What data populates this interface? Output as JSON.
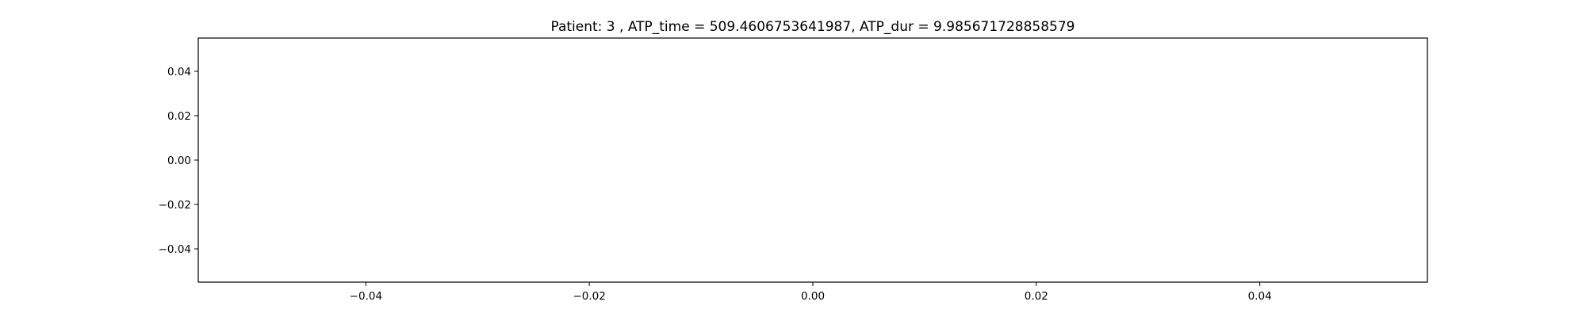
{
  "chart_data": {
    "type": "line",
    "title": "Patient: 3 , ATP_time = 509.4606753641987, ATP_dur = 9.985671728858579",
    "xlabel": "",
    "ylabel": "",
    "series": [],
    "xlim": [
      -0.055,
      0.055
    ],
    "ylim": [
      -0.055,
      0.055
    ],
    "x_ticks": [
      -0.04,
      -0.02,
      0.0,
      0.02,
      0.04
    ],
    "x_tick_labels": [
      "−0.04",
      "−0.02",
      "0.00",
      "0.02",
      "0.04"
    ],
    "y_ticks": [
      0.04,
      0.02,
      0.0,
      -0.02,
      -0.04
    ],
    "y_tick_labels": [
      "0.04",
      "0.02",
      "0.00",
      "−0.02",
      "−0.04"
    ],
    "grid": false,
    "legend": false
  }
}
